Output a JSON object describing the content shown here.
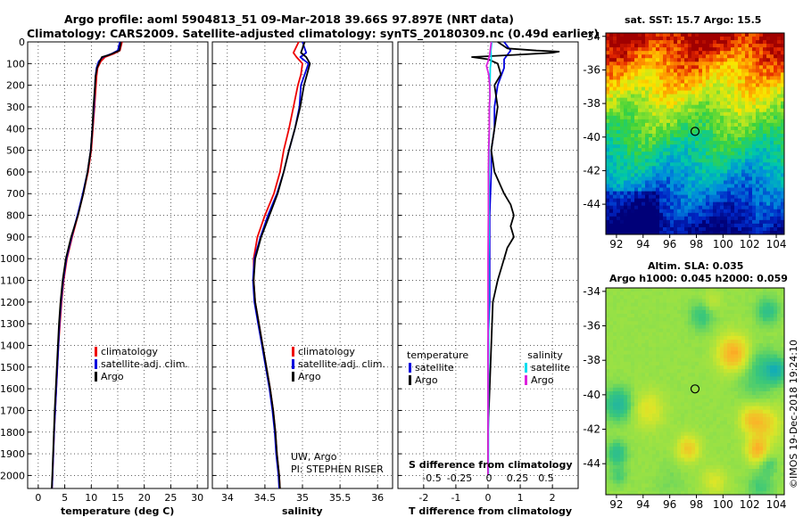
{
  "header": {
    "line1": "Argo profile: aoml 5904813_51 09-Mar-2018 39.66S 97.897E (NRT data)",
    "line2": "Climatology: CARS2009. Satellite-adjusted climatology: synTS_20180309.nc (0.49d earlier)"
  },
  "chart_data": [
    {
      "type": "line",
      "name": "temperature",
      "xlabel": "temperature (deg C)",
      "xlim": [
        -2,
        32
      ],
      "xticks": [
        0,
        5,
        10,
        15,
        20,
        25,
        30
      ],
      "ylim": [
        2060,
        0
      ],
      "yticks": [
        0,
        100,
        200,
        300,
        400,
        500,
        600,
        700,
        800,
        900,
        1000,
        1100,
        1200,
        1300,
        1400,
        1500,
        1600,
        1700,
        1800,
        1900,
        2000
      ],
      "legend": [
        "climatology",
        "satellite-adj. clim.",
        "Argo"
      ],
      "colors": [
        "#ee0000",
        "#0000dd",
        "#000000"
      ],
      "series": [
        {
          "name": "climatology",
          "depth": [
            0,
            40,
            55,
            70,
            90,
            120,
            160,
            200,
            300,
            400,
            500,
            600,
            700,
            800,
            900,
            1000,
            1100,
            1200,
            1300,
            1400,
            1500,
            1600,
            1700,
            1800,
            1900,
            2000,
            2060
          ],
          "values": [
            15.8,
            15.4,
            14.2,
            12.6,
            11.8,
            11.2,
            11.0,
            10.9,
            10.6,
            10.3,
            10.0,
            9.4,
            8.5,
            7.5,
            6.4,
            5.4,
            4.8,
            4.4,
            4.1,
            3.8,
            3.6,
            3.4,
            3.2,
            3.0,
            2.85,
            2.7,
            2.6
          ]
        },
        {
          "name": "satellite-adj. clim.",
          "depth": [
            0,
            40,
            55,
            70,
            90,
            120,
            160,
            200,
            300,
            400,
            500,
            600,
            700,
            800,
            900,
            1000,
            1100,
            1200,
            1300,
            1400,
            1500,
            1600,
            1700,
            1800,
            1900,
            2000,
            2060
          ],
          "values": [
            15.4,
            15.0,
            13.8,
            12.2,
            11.4,
            11.0,
            10.8,
            10.7,
            10.5,
            10.2,
            9.9,
            9.3,
            8.4,
            7.4,
            6.3,
            5.3,
            4.7,
            4.3,
            4.0,
            3.8,
            3.6,
            3.4,
            3.2,
            3.0,
            2.85,
            2.7,
            2.6
          ]
        },
        {
          "name": "Argo",
          "depth": [
            0,
            40,
            60,
            70,
            90,
            120,
            160,
            200,
            300,
            400,
            500,
            600,
            700,
            800,
            900,
            1000,
            1100,
            1200,
            1300,
            1400,
            1500,
            1600,
            1700,
            1800,
            1900,
            2000,
            2060
          ],
          "values": [
            15.6,
            15.3,
            13.4,
            12.0,
            11.6,
            11.1,
            10.8,
            10.7,
            10.4,
            10.2,
            9.9,
            9.3,
            8.5,
            7.5,
            6.2,
            5.2,
            4.6,
            4.2,
            3.9,
            3.7,
            3.5,
            3.3,
            3.1,
            2.95,
            2.8,
            2.65,
            2.55
          ]
        }
      ]
    },
    {
      "type": "line",
      "name": "salinity",
      "xlabel": "salinity",
      "xlim": [
        33.8,
        36.2
      ],
      "xticks": [
        34,
        34.5,
        35,
        35.5,
        36
      ],
      "ylim": [
        2060,
        0
      ],
      "legend": [
        "climatology",
        "satellite-adj. clim.",
        "Argo"
      ],
      "colors": [
        "#ee0000",
        "#0000dd",
        "#000000"
      ],
      "annotation": [
        "UW, Argo",
        "PI: STEPHEN RISER"
      ],
      "series": [
        {
          "name": "climatology",
          "depth": [
            0,
            50,
            70,
            100,
            150,
            200,
            300,
            400,
            500,
            600,
            700,
            800,
            900,
            1000,
            1100,
            1200,
            1300,
            1400,
            1500,
            1600,
            1700,
            1800,
            1900,
            2000,
            2060
          ],
          "values": [
            34.95,
            34.88,
            34.92,
            35.0,
            34.98,
            34.94,
            34.88,
            34.82,
            34.75,
            34.7,
            34.62,
            34.5,
            34.4,
            34.35,
            34.35,
            34.37,
            34.42,
            34.47,
            34.52,
            34.57,
            34.61,
            34.64,
            34.66,
            34.69,
            34.7
          ]
        },
        {
          "name": "satellite-adj. clim.",
          "depth": [
            0,
            50,
            70,
            100,
            150,
            200,
            300,
            400,
            500,
            600,
            700,
            800,
            900,
            1000,
            1100,
            1200,
            1300,
            1400,
            1500,
            1600,
            1700,
            1800,
            1900,
            2000,
            2060
          ],
          "values": [
            35.0,
            35.05,
            34.97,
            35.08,
            35.03,
            34.98,
            34.96,
            34.9,
            34.82,
            34.75,
            34.66,
            34.54,
            34.44,
            34.36,
            34.34,
            34.36,
            34.41,
            34.46,
            34.51,
            34.56,
            34.6,
            34.63,
            34.65,
            34.68,
            34.69
          ]
        },
        {
          "name": "Argo",
          "depth": [
            0,
            50,
            70,
            100,
            150,
            200,
            300,
            400,
            500,
            600,
            700,
            800,
            900,
            1000,
            1100,
            1200,
            1300,
            1400,
            1500,
            1600,
            1700,
            1800,
            1900,
            2000,
            2060
          ],
          "values": [
            35.03,
            34.98,
            35.05,
            35.1,
            35.06,
            35.02,
            34.97,
            34.9,
            34.82,
            34.75,
            34.67,
            34.56,
            34.45,
            34.37,
            34.35,
            34.37,
            34.42,
            34.47,
            34.52,
            34.57,
            34.61,
            34.64,
            34.66,
            34.69,
            34.7
          ]
        }
      ]
    },
    {
      "type": "line",
      "name": "difference from climatology",
      "xlabel": "T difference from climatology",
      "top_xlabel": "S difference from climatology",
      "xlim": [
        -2.8,
        2.8
      ],
      "xticks": [
        -2,
        -1,
        0,
        1,
        2
      ],
      "top_xtick_labels": [
        "-0.5",
        "-0.25",
        "0",
        "0.25",
        "0.5"
      ],
      "ylim": [
        2060,
        0
      ],
      "legend_left_title": "temperature",
      "legend_right_title": "salinity",
      "legend": [
        "satellite",
        "Argo",
        "satellite",
        "Argo"
      ],
      "colors": [
        "#0000dd",
        "#000000",
        "#00ddee",
        "#dd22dd"
      ],
      "series": [
        {
          "name": "temperature satellite",
          "depth": [
            0,
            40,
            80,
            120,
            200,
            300,
            400,
            500,
            600,
            800,
            1000,
            1200,
            1400,
            1600,
            1800,
            2000
          ],
          "values": [
            0.5,
            0.7,
            0.5,
            0.5,
            0.3,
            0.2,
            0.2,
            0.1,
            0.1,
            0.05,
            0.05,
            0.05,
            0.0,
            0.0,
            0.0,
            0.0
          ]
        },
        {
          "name": "temperature Argo",
          "depth": [
            0,
            30,
            40,
            45,
            50,
            60,
            70,
            80,
            100,
            150,
            200,
            300,
            400,
            500,
            600,
            700,
            750,
            800,
            850,
            900,
            950,
            1000,
            1050,
            1100,
            1200,
            1400,
            1600,
            1800,
            2000
          ],
          "values": [
            0.3,
            0.6,
            1.5,
            2.2,
            2.0,
            0.8,
            -0.5,
            0.0,
            0.3,
            0.4,
            0.2,
            0.3,
            0.2,
            0.1,
            0.2,
            0.5,
            0.7,
            0.8,
            0.7,
            0.8,
            0.6,
            0.5,
            0.4,
            0.3,
            0.15,
            0.1,
            0.05,
            0.0,
            0.0
          ]
        },
        {
          "name": "salinity satellite",
          "depth": [
            0,
            40,
            80,
            120,
            200,
            300,
            400,
            500,
            600,
            700,
            800,
            900,
            1000,
            1100,
            1200,
            1400,
            1600,
            1800,
            2000
          ],
          "values": [
            0.12,
            0.09,
            0.1,
            0.07,
            0.06,
            0.05,
            0.04,
            0.03,
            0.03,
            0.03,
            0.03,
            0.03,
            0.02,
            0.02,
            0.02,
            0.02,
            0.01,
            0.01,
            0.01
          ]
        },
        {
          "name": "salinity Argo",
          "depth": [
            0,
            60,
            90,
            110,
            150,
            200,
            250,
            300,
            400,
            500,
            600,
            800,
            1000,
            1200,
            1400,
            1600,
            1800,
            2000
          ],
          "values": [
            0.1,
            0.05,
            0.0,
            -0.05,
            0.02,
            0.05,
            0.06,
            0.04,
            0.04,
            0.02,
            0.01,
            0.01,
            0.0,
            0.0,
            0.0,
            0.0,
            0.0,
            0.0
          ]
        }
      ]
    },
    {
      "type": "heatmap",
      "name": "sat. SST map",
      "title": "sat. SST: 15.7 Argo: 15.5",
      "xticks": [
        92,
        94,
        96,
        98,
        100,
        102,
        104
      ],
      "yticks": [
        -34,
        -36,
        -38,
        -40,
        -42,
        -44
      ],
      "xlim": [
        91.2,
        104.6
      ],
      "ylim": [
        -45.8,
        -33.8
      ],
      "marker": [
        97.9,
        -39.66
      ]
    },
    {
      "type": "heatmap",
      "name": "altimetry SLA map",
      "title": "Altim. SLA: 0.035",
      "subtitle": "Argo h1000: 0.045 h2000: 0.059",
      "xticks": [
        92,
        94,
        96,
        98,
        100,
        102,
        104
      ],
      "yticks": [
        -34,
        -36,
        -38,
        -40,
        -42,
        -44
      ],
      "xlim": [
        91.2,
        104.6
      ],
      "ylim": [
        -45.8,
        -33.8
      ],
      "marker": [
        97.9,
        -39.66
      ]
    }
  ],
  "footer": {
    "credit": "©IMOS 19-Dec-2018 19:24:10"
  }
}
